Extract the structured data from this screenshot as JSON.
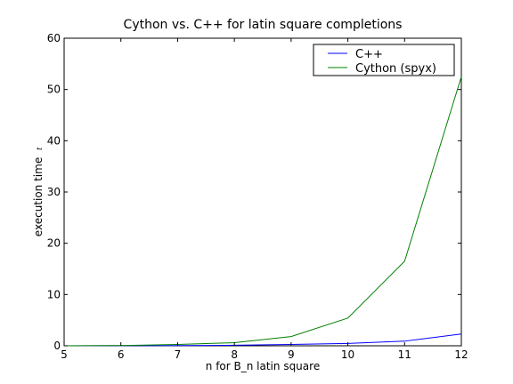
{
  "chart_data": {
    "type": "line",
    "title": "Cython vs. C++ for latin square completions",
    "xlabel": "n for B_n latin square",
    "ylabel": "execution time",
    "ylabel_unit": "t",
    "xlim": [
      5,
      12
    ],
    "ylim": [
      0,
      60
    ],
    "x_ticks": [
      5,
      6,
      7,
      8,
      9,
      10,
      11,
      12
    ],
    "y_ticks": [
      0,
      10,
      20,
      30,
      40,
      50,
      60
    ],
    "grid": false,
    "legend_position": "top-right",
    "x": [
      5,
      6,
      7,
      8,
      9,
      10,
      11,
      12
    ],
    "series": [
      {
        "name": "C++",
        "color": "#0000ff",
        "values": [
          0.0,
          0.02,
          0.05,
          0.1,
          0.25,
          0.45,
          0.9,
          2.3
        ]
      },
      {
        "name": "Cython (spyx)",
        "color": "#008000",
        "values": [
          0.01,
          0.05,
          0.25,
          0.6,
          1.8,
          5.4,
          16.5,
          52.5
        ]
      }
    ]
  }
}
